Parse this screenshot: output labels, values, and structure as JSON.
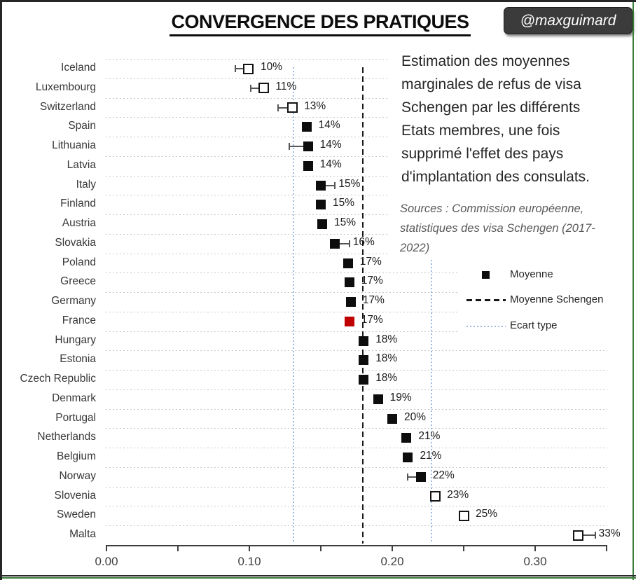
{
  "header": {
    "title": "CONVERGENCE DES PRATIQUES",
    "badge": "@maxguimard"
  },
  "annotation": {
    "lines": [
      "Estimation des moyennes",
      "marginales de refus de visa",
      "Schengen par les différents",
      "Etats membres, une fois",
      "supprimé l'effet des pays",
      "d'implantation des consulats."
    ]
  },
  "sources": {
    "lines": [
      "Sources : Commission européenne,",
      "statistiques des visa Schengen (2017-",
      "2022)"
    ]
  },
  "legend": {
    "items": [
      {
        "type": "square",
        "label": "Moyenne"
      },
      {
        "type": "dashed",
        "label": "Moyenne Schengen"
      },
      {
        "type": "dotted",
        "label": "Ecart type"
      }
    ]
  },
  "colors": {
    "marker_black": "#0d0d0d",
    "marker_red": "#C00000",
    "ecart_type_blue": "#9bb9e4",
    "mean_dash_black": "#191919",
    "gridline_gray": "#c6c6c6",
    "sources_gray": "#595959",
    "badge_bg": "#3b3b3b",
    "green_line": "#3a7d3a"
  },
  "chart_data": {
    "type": "scatter",
    "title": "CONVERGENCE DES PRATIQUES",
    "xlabel": "",
    "ylabel": "",
    "xlim": [
      0,
      0.35
    ],
    "grid": "horizontal-dotted",
    "legend_position": "right-middle",
    "mean_schengen_line": 0.1795,
    "ecart_type_lines": [
      0.131,
      0.2275
    ],
    "x_ticks": [
      {
        "v": 0.0,
        "label": "0.00"
      },
      {
        "v": 0.05,
        "label": ""
      },
      {
        "v": 0.1,
        "label": "0.10"
      },
      {
        "v": 0.15,
        "label": ""
      },
      {
        "v": 0.2,
        "label": "0.20"
      },
      {
        "v": 0.25,
        "label": ""
      },
      {
        "v": 0.3,
        "label": "0.30"
      },
      {
        "v": 0.35,
        "label": ""
      }
    ],
    "points": [
      {
        "country": "Iceland",
        "value": 0.0995,
        "label": "10%",
        "marker": "open",
        "whisker_to": 0.09
      },
      {
        "country": "Luxembourg",
        "value": 0.11,
        "label": "11%",
        "marker": "open",
        "whisker_to": 0.101
      },
      {
        "country": "Switzerland",
        "value": 0.13,
        "label": "13%",
        "marker": "open",
        "whisker_to": 0.12
      },
      {
        "country": "Spain",
        "value": 0.14,
        "label": "14%",
        "marker": "filled",
        "whisker_to": null
      },
      {
        "country": "Lithuania",
        "value": 0.141,
        "label": "14%",
        "marker": "filled",
        "whisker_to": 0.128
      },
      {
        "country": "Latvia",
        "value": 0.141,
        "label": "14%",
        "marker": "filled",
        "whisker_to": null
      },
      {
        "country": "Italy",
        "value": 0.15,
        "label": "15%",
        "marker": "filled",
        "whisker_to": 0.16
      },
      {
        "country": "Finland",
        "value": 0.15,
        "label": "15%",
        "marker": "filled",
        "whisker_to": null
      },
      {
        "country": "Austria",
        "value": 0.151,
        "label": "15%",
        "marker": "filled",
        "whisker_to": null
      },
      {
        "country": "Slovakia",
        "value": 0.16,
        "label": "16%",
        "marker": "filled",
        "whisker_to": 0.17
      },
      {
        "country": "Poland",
        "value": 0.169,
        "label": "17%",
        "marker": "filled",
        "whisker_to": null
      },
      {
        "country": "Greece",
        "value": 0.17,
        "label": "17%",
        "marker": "filled",
        "whisker_to": null
      },
      {
        "country": "Germany",
        "value": 0.171,
        "label": "17%",
        "marker": "filled",
        "whisker_to": null
      },
      {
        "country": "France",
        "value": 0.17,
        "label": "17%",
        "marker": "red",
        "whisker_to": null
      },
      {
        "country": "Hungary",
        "value": 0.18,
        "label": "18%",
        "marker": "filled",
        "whisker_to": null
      },
      {
        "country": "Estonia",
        "value": 0.18,
        "label": "18%",
        "marker": "filled",
        "whisker_to": null
      },
      {
        "country": "Czech Republic",
        "value": 0.18,
        "label": "18%",
        "marker": "filled",
        "whisker_to": null
      },
      {
        "country": "Denmark",
        "value": 0.19,
        "label": "19%",
        "marker": "filled",
        "whisker_to": null
      },
      {
        "country": "Portugal",
        "value": 0.2,
        "label": "20%",
        "marker": "filled",
        "whisker_to": null
      },
      {
        "country": "Netherlands",
        "value": 0.21,
        "label": "21%",
        "marker": "filled",
        "whisker_to": null
      },
      {
        "country": "Belgium",
        "value": 0.211,
        "label": "21%",
        "marker": "filled",
        "whisker_to": null
      },
      {
        "country": "Norway",
        "value": 0.22,
        "label": "22%",
        "marker": "filled",
        "whisker_to": 0.211
      },
      {
        "country": "Slovenia",
        "value": 0.23,
        "label": "23%",
        "marker": "open",
        "whisker_to": null
      },
      {
        "country": "Sweden",
        "value": 0.25,
        "label": "25%",
        "marker": "open",
        "whisker_to": null
      },
      {
        "country": "Malta",
        "value": 0.33,
        "label": "33%",
        "marker": "open",
        "whisker_to": 0.342
      }
    ]
  }
}
